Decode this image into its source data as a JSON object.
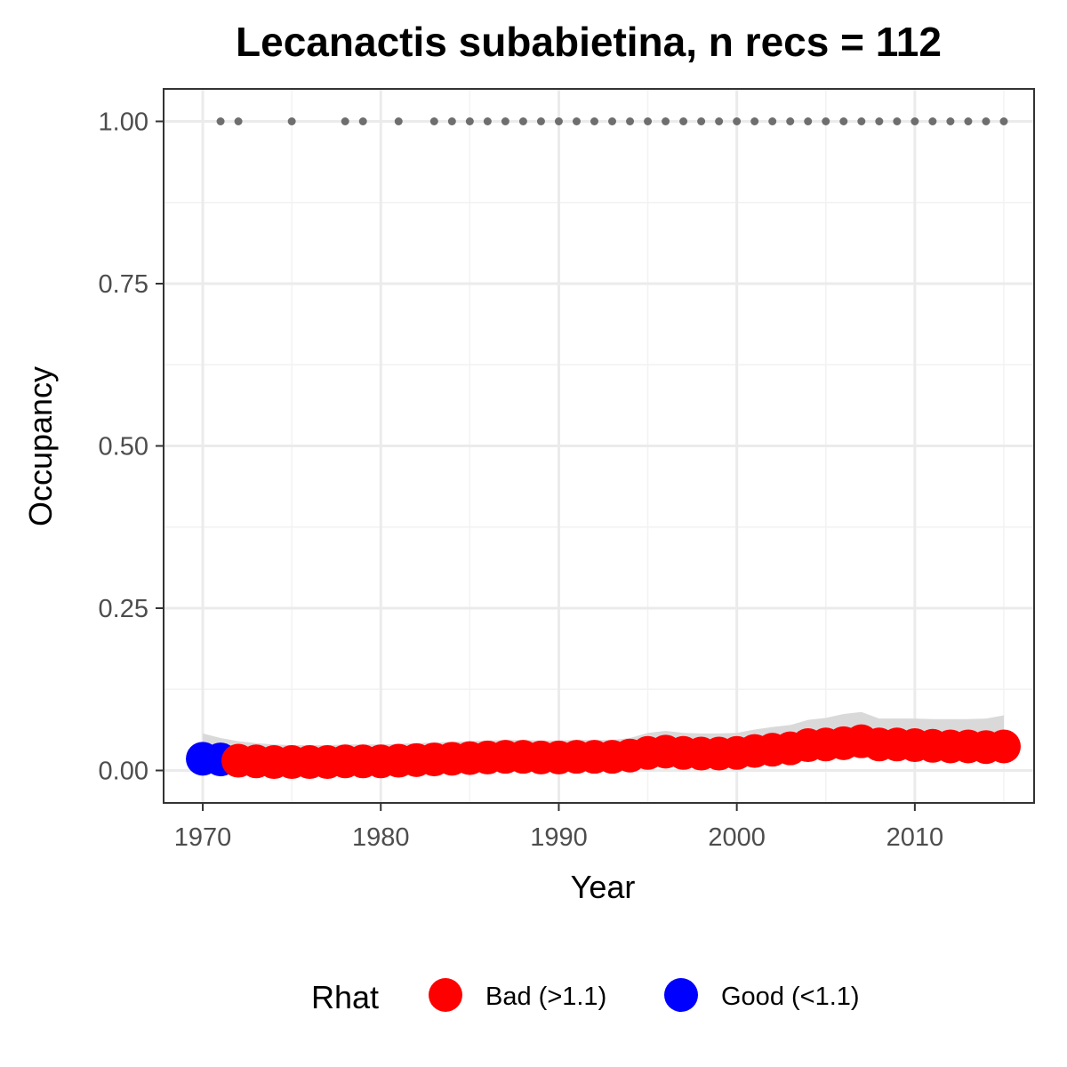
{
  "chart_data": {
    "type": "line",
    "title": "Lecanactis subabietina, n recs = 112",
    "xlabel": "Year",
    "ylabel": "Occupancy",
    "xlim": [
      1967.8,
      2016.7
    ],
    "ylim": [
      -0.05,
      1.05
    ],
    "x_ticks": [
      1970,
      1980,
      1990,
      2000,
      2010
    ],
    "x_tick_labels": [
      "1970",
      "1980",
      "1990",
      "2000",
      "2010"
    ],
    "y_ticks": [
      0,
      0.25,
      0.5,
      0.75,
      1.0
    ],
    "y_tick_labels": [
      "0.00",
      "0.25",
      "0.50",
      "0.75",
      "1.00"
    ],
    "grid": true,
    "legend": {
      "title": "Rhat",
      "position": "bottom",
      "entries": [
        {
          "label": "Bad (>1.1)",
          "color": "#ff0000"
        },
        {
          "label": "Good (<1.1)",
          "color": "#0000ff"
        }
      ]
    },
    "colors": {
      "bad": "#ff0000",
      "good": "#0000ff",
      "ribbon": "#d9d9d9",
      "records": "#6e6e6e"
    },
    "series": [
      {
        "x": [
          1970,
          1971,
          1972,
          1973,
          1974,
          1975,
          1976,
          1977,
          1978,
          1979,
          1980,
          1981,
          1982,
          1983,
          1984,
          1985,
          1986,
          1987,
          1988,
          1989,
          1990,
          1991,
          1992,
          1993,
          1994,
          1995,
          1996,
          1997,
          1998,
          1999,
          2000,
          2001,
          2002,
          2003,
          2004,
          2005,
          2006,
          2007,
          2008,
          2009,
          2010,
          2011,
          2012,
          2013,
          2014,
          2015
        ],
        "y": [
          0.018,
          0.017,
          0.015,
          0.014,
          0.013,
          0.013,
          0.013,
          0.013,
          0.014,
          0.014,
          0.014,
          0.015,
          0.016,
          0.017,
          0.018,
          0.019,
          0.02,
          0.021,
          0.021,
          0.02,
          0.02,
          0.021,
          0.021,
          0.021,
          0.023,
          0.027,
          0.029,
          0.027,
          0.026,
          0.026,
          0.027,
          0.03,
          0.032,
          0.034,
          0.039,
          0.04,
          0.042,
          0.045,
          0.04,
          0.04,
          0.039,
          0.038,
          0.037,
          0.037,
          0.036,
          0.037
        ],
        "rhat": [
          "good",
          "good",
          "bad",
          "bad",
          "bad",
          "bad",
          "bad",
          "bad",
          "bad",
          "bad",
          "bad",
          "bad",
          "bad",
          "bad",
          "bad",
          "bad",
          "bad",
          "bad",
          "bad",
          "bad",
          "bad",
          "bad",
          "bad",
          "bad",
          "bad",
          "bad",
          "bad",
          "bad",
          "bad",
          "bad",
          "bad",
          "bad",
          "bad",
          "bad",
          "bad",
          "bad",
          "bad",
          "bad",
          "bad",
          "bad",
          "bad",
          "bad",
          "bad",
          "bad",
          "bad",
          "bad"
        ],
        "ci_lower": [
          0.005,
          0.005,
          0.004,
          0.004,
          0.004,
          0.004,
          0.004,
          0.004,
          0.004,
          0.004,
          0.004,
          0.004,
          0.005,
          0.005,
          0.005,
          0.006,
          0.006,
          0.007,
          0.007,
          0.007,
          0.007,
          0.007,
          0.007,
          0.007,
          0.008,
          0.01,
          0.011,
          0.01,
          0.01,
          0.01,
          0.011,
          0.012,
          0.013,
          0.014,
          0.017,
          0.018,
          0.019,
          0.021,
          0.018,
          0.018,
          0.018,
          0.017,
          0.017,
          0.017,
          0.016,
          0.017
        ],
        "ci_upper": [
          0.057,
          0.05,
          0.045,
          0.042,
          0.04,
          0.039,
          0.039,
          0.039,
          0.04,
          0.04,
          0.04,
          0.041,
          0.042,
          0.043,
          0.044,
          0.045,
          0.046,
          0.047,
          0.047,
          0.046,
          0.046,
          0.047,
          0.047,
          0.047,
          0.05,
          0.058,
          0.061,
          0.058,
          0.057,
          0.057,
          0.058,
          0.063,
          0.067,
          0.07,
          0.078,
          0.081,
          0.087,
          0.09,
          0.08,
          0.08,
          0.08,
          0.079,
          0.079,
          0.079,
          0.08,
          0.085
        ]
      }
    ],
    "record_years": [
      1971,
      1972,
      1975,
      1978,
      1979,
      1981,
      1983,
      1984,
      1985,
      1986,
      1987,
      1988,
      1989,
      1990,
      1991,
      1992,
      1993,
      1994,
      1995,
      1996,
      1997,
      1998,
      1999,
      2000,
      2001,
      2002,
      2003,
      2004,
      2005,
      2006,
      2007,
      2008,
      2009,
      2010,
      2011,
      2012,
      2013,
      2014,
      2015
    ],
    "record_y": 1.0
  }
}
